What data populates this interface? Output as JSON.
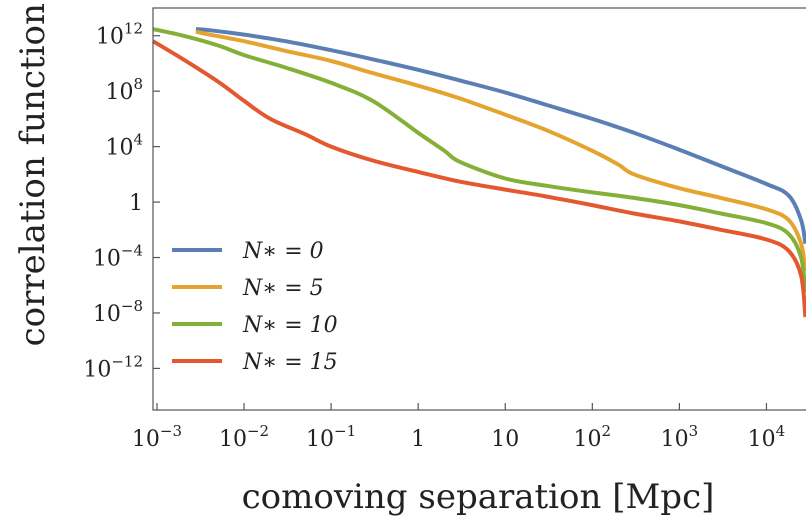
{
  "chart_data": {
    "type": "line",
    "xlabel": "comoving separation [Mpc]",
    "ylabel": "correlation function ξ",
    "xscale": "log",
    "yscale": "log",
    "xlim": [
      0.0009,
      30000
    ],
    "ylim": [
      1e-15,
      100000000000000.0
    ],
    "grid": false,
    "legend_position": "lower-left",
    "x_ticks": [
      {
        "base": "10",
        "exp": "−3",
        "value": 0.001
      },
      {
        "base": "10",
        "exp": "−2",
        "value": 0.01
      },
      {
        "base": "10",
        "exp": "−1",
        "value": 0.1
      },
      {
        "base": "1",
        "exp": "",
        "value": 1
      },
      {
        "base": "10",
        "exp": "",
        "value": 10
      },
      {
        "base": "10",
        "exp": "2",
        "value": 100
      },
      {
        "base": "10",
        "exp": "3",
        "value": 1000
      },
      {
        "base": "10",
        "exp": "4",
        "value": 10000
      }
    ],
    "y_ticks": [
      {
        "base": "10",
        "exp": "12",
        "value": 1000000000000.0
      },
      {
        "base": "10",
        "exp": "8",
        "value": 100000000.0
      },
      {
        "base": "10",
        "exp": "4",
        "value": 10000.0
      },
      {
        "base": "1",
        "exp": "",
        "value": 1
      },
      {
        "base": "10",
        "exp": "−4",
        "value": 0.0001
      },
      {
        "base": "10",
        "exp": "−8",
        "value": 1e-08
      },
      {
        "base": "10",
        "exp": "−12",
        "value": 1e-12
      }
    ],
    "series": [
      {
        "name": "N* = 0",
        "legend_label": "N∗ = 0",
        "color": "#5b7fb5",
        "x": [
          0.0028,
          0.004,
          0.01,
          0.03,
          0.1,
          0.3,
          1,
          3,
          10,
          30,
          100,
          300,
          1000,
          3000,
          10000,
          18000,
          25000,
          28000
        ],
        "y": [
          3000000000000.0,
          2500000000000.0,
          1200000000000.0,
          400000000000.0,
          90000000000.0,
          20000000000.0,
          3500000000.0,
          600000000.0,
          80000000.0,
          10000000.0,
          1000000.0,
          100000.0,
          6000.0,
          400,
          20,
          3,
          0.05,
          0.001
        ]
      },
      {
        "name": "N* = 5",
        "legend_label": "N∗ = 5",
        "color": "#e4a42f",
        "x": [
          0.0028,
          0.004,
          0.01,
          0.03,
          0.1,
          0.3,
          1,
          3,
          10,
          30,
          100,
          200,
          300,
          1000,
          3000,
          10000,
          18000,
          25000,
          28000
        ],
        "y": [
          2000000000000.0,
          1200000000000.0,
          400000000000.0,
          80000000000.0,
          15000000000.0,
          2000000000.0,
          250000000.0,
          30000000.0,
          2000000.0,
          150000.0,
          5000.0,
          500,
          100,
          10,
          2,
          0.3,
          0.05,
          0.001,
          1e-05
        ]
      },
      {
        "name": "N* = 10",
        "legend_label": "N∗ = 10",
        "color": "#85b038",
        "x": [
          0.0009,
          0.002,
          0.005,
          0.01,
          0.03,
          0.1,
          0.3,
          1,
          2,
          3,
          10,
          30,
          100,
          300,
          1000,
          3000,
          10000,
          18000,
          25000,
          28000
        ],
        "y": [
          3000000000000.0,
          1000000000000.0,
          200000000000.0,
          40000000000.0,
          5000000000.0,
          400000000.0,
          20000000.0,
          100000.0,
          5000.0,
          800,
          50,
          15,
          5,
          2,
          0.6,
          0.15,
          0.03,
          0.005,
          0.0001,
          3e-07
        ]
      },
      {
        "name": "N* = 15",
        "legend_label": "N∗ = 15",
        "color": "#e4582f",
        "x": [
          0.0009,
          0.002,
          0.005,
          0.01,
          0.02,
          0.05,
          0.1,
          0.3,
          1,
          3,
          10,
          30,
          100,
          300,
          1000,
          3000,
          10000,
          18000,
          25000,
          28000
        ],
        "y": [
          400000000000.0,
          20000000000.0,
          500000000.0,
          20000000.0,
          1000000.0,
          80000.0,
          10000.0,
          1000.0,
          150.0,
          30,
          8,
          2.5,
          0.6,
          0.15,
          0.04,
          0.01,
          0.002,
          0.0003,
          5e-06,
          5e-09
        ]
      }
    ]
  }
}
